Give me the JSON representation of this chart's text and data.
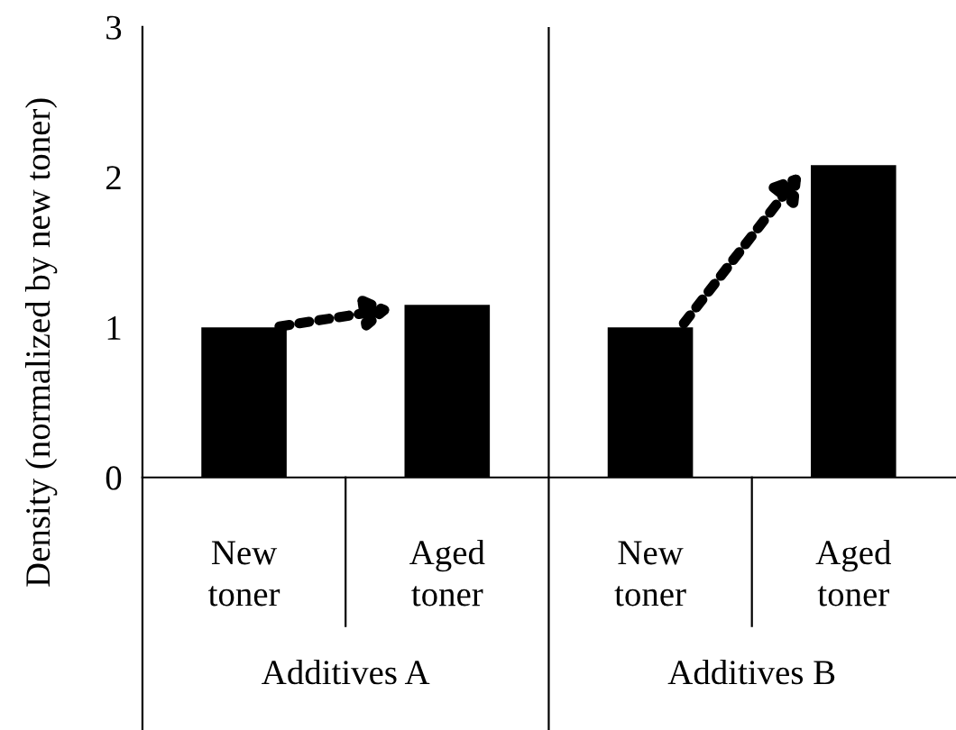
{
  "chart_data": {
    "type": "bar",
    "ylabel": "Density (normalized by new toner)",
    "categories": [
      "New\ntoner",
      "Aged\ntoner",
      "New\ntoner",
      "Aged\ntoner"
    ],
    "values": [
      1.0,
      1.15,
      1.0,
      2.08
    ],
    "color": "#000000",
    "ylim": [
      0,
      3
    ],
    "yticks": [
      0,
      1,
      2,
      3
    ],
    "grid": false,
    "annotations": [
      "Additives A",
      "Additives B"
    ]
  }
}
